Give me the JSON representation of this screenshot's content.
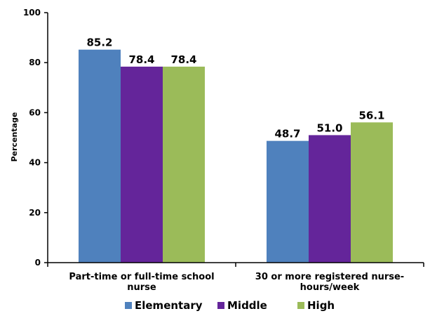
{
  "chart_data": {
    "type": "bar",
    "title": "",
    "xlabel": "",
    "ylabel": "Percentage",
    "ylim": [
      0,
      100
    ],
    "yticks": [
      0,
      20,
      40,
      60,
      80,
      100
    ],
    "grid": false,
    "legend_position": "bottom",
    "categories": [
      [
        "Part-time or full-time school",
        "nurse"
      ],
      [
        "30 or more registered nurse-",
        "hours/week"
      ]
    ],
    "series": [
      {
        "name": "Elementary",
        "color": "#4F81BD",
        "values": [
          85.2,
          48.7
        ],
        "labels": [
          "85.2",
          "48.7"
        ]
      },
      {
        "name": "Middle",
        "color": "#64259A",
        "values": [
          78.4,
          51.0
        ],
        "labels": [
          "78.4",
          "51.0"
        ]
      },
      {
        "name": "High",
        "color": "#9BBB59",
        "values": [
          78.4,
          56.1
        ],
        "labels": [
          "78.4",
          "56.1"
        ]
      }
    ]
  }
}
